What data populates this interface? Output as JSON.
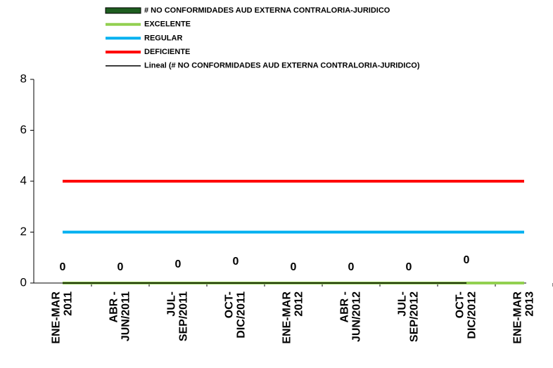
{
  "chart_data": {
    "type": "bar",
    "categories": [
      [
        "ENE-MAR",
        "2011"
      ],
      [
        "ABR -",
        "JUN/2011"
      ],
      [
        "JUL-",
        "SEP/2011"
      ],
      [
        "OCT-",
        "DIC/2011"
      ],
      [
        "ENE-MAR",
        "2012"
      ],
      [
        "ABR -",
        "JUN/2012"
      ],
      [
        "JUL-",
        "SEP/2012"
      ],
      [
        "OCT-",
        "DIC/2012"
      ],
      [
        "ENE-MAR",
        "2013"
      ]
    ],
    "series": [
      {
        "name": "# NO CONFORMIDADES AUD EXTERNA CONTRALORIA-JURIDICO",
        "type": "bar",
        "color": "#1e5e20",
        "values": [
          0,
          0,
          0,
          0,
          0,
          0,
          0,
          0,
          null
        ]
      },
      {
        "name": "EXCELENTE",
        "type": "line",
        "color": "#92d050",
        "values": [
          0,
          0,
          0,
          0,
          0,
          0,
          0,
          0,
          0
        ]
      },
      {
        "name": "REGULAR",
        "type": "line",
        "color": "#00b0f0",
        "values": [
          2,
          2,
          2,
          2,
          2,
          2,
          2,
          2,
          2
        ]
      },
      {
        "name": "DEFICIENTE",
        "type": "line",
        "color": "#ff0000",
        "values": [
          4,
          4,
          4,
          4,
          4,
          4,
          4,
          4,
          4
        ]
      },
      {
        "name": "Lineal (# NO CONFORMIDADES AUD EXTERNA CONTRALORIA-JURIDICO)",
        "type": "line",
        "color": "#000000",
        "values": [
          0,
          0,
          0,
          0,
          0,
          0,
          0,
          0,
          null
        ]
      }
    ],
    "ylim": [
      0,
      8
    ],
    "yticks": [
      0,
      2,
      4,
      6,
      8
    ],
    "grid": false
  }
}
